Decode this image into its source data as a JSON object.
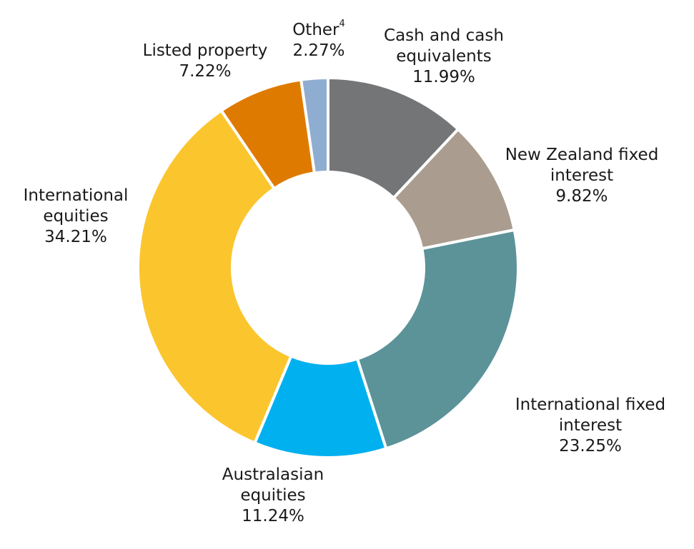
{
  "chart_data": {
    "type": "pie",
    "donut": true,
    "legend": "none",
    "slices": [
      {
        "key": "cash",
        "lines": [
          "Cash and cash",
          "equivalents"
        ],
        "value": 11.99,
        "label": "11.99%",
        "color": "#747576"
      },
      {
        "key": "nzfixed",
        "lines": [
          "New Zealand fixed",
          "interest"
        ],
        "value": 9.82,
        "label": "9.82%",
        "color": "#aa9d90"
      },
      {
        "key": "intfixed",
        "lines": [
          "International fixed",
          "interest"
        ],
        "value": 23.25,
        "label": "23.25%",
        "color": "#5b9399"
      },
      {
        "key": "ausequities",
        "lines": [
          "Australasian",
          "equities"
        ],
        "value": 11.24,
        "label": "11.24%",
        "color": "#00b0ef"
      },
      {
        "key": "intequities",
        "lines": [
          "International",
          "equities"
        ],
        "value": 34.21,
        "label": "34.21%",
        "color": "#fbc52d"
      },
      {
        "key": "property",
        "lines": [
          "Listed property"
        ],
        "value": 7.22,
        "label": "7.22%",
        "color": "#df7a00"
      },
      {
        "key": "other",
        "lines": [
          "Other"
        ],
        "superscript": "4",
        "value": 2.27,
        "label": "2.27%",
        "color": "#8fadd0"
      }
    ]
  }
}
